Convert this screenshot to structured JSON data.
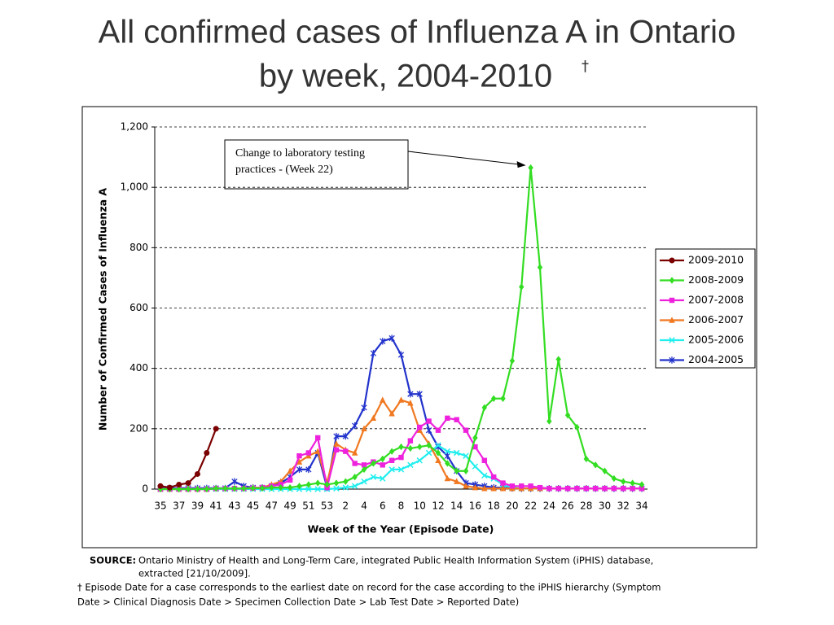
{
  "title_lines": [
    "All confirmed cases of Influenza A in Ontario",
    "by week, 2004-2010"
  ],
  "title_mark": "†",
  "chart_data": {
    "type": "line",
    "ylabel": "Number of Confirmed Cases of Influenza A",
    "xlabel": "Week of the Year (Episode Date)",
    "annotation": {
      "lines": [
        "Change to laboratory testing",
        "practices - (Week 22)"
      ],
      "target": "chart_data.series.1.values.40"
    },
    "ylim": [
      0,
      1200
    ],
    "yticks": [
      0,
      200,
      400,
      600,
      800,
      {
        "value": 1000,
        "label": "1,000"
      },
      {
        "value": 1200,
        "label": "1,200"
      }
    ],
    "grid": true,
    "legend": "right",
    "categories": [
      35,
      null,
      37,
      null,
      39,
      null,
      41,
      null,
      43,
      null,
      45,
      null,
      47,
      null,
      49,
      null,
      51,
      null,
      53,
      null,
      2,
      null,
      4,
      null,
      6,
      null,
      8,
      null,
      10,
      null,
      12,
      null,
      14,
      null,
      16,
      null,
      18,
      null,
      20,
      null,
      22,
      null,
      24,
      null,
      26,
      null,
      28,
      null,
      30,
      null,
      32,
      null,
      34
    ],
    "series": [
      {
        "name": "2009-2010",
        "color": "#7b0000",
        "marker": "circle",
        "values": [
          10,
          5,
          15,
          20,
          50,
          120,
          200,
          null,
          null,
          null,
          null,
          null,
          null,
          null,
          null,
          null,
          null,
          null,
          null,
          null,
          null,
          null,
          null,
          null,
          null,
          null,
          null,
          null,
          null,
          null,
          null,
          null,
          null,
          null,
          null,
          null,
          null,
          null,
          null,
          null,
          null,
          null,
          null,
          null,
          null,
          null,
          null,
          null,
          null,
          null,
          null,
          null,
          null
        ]
      },
      {
        "name": "2008-2009",
        "color": "#33dd22",
        "marker": "diamond",
        "values": [
          0,
          0,
          0,
          0,
          0,
          0,
          2,
          2,
          2,
          2,
          3,
          3,
          5,
          5,
          5,
          10,
          15,
          20,
          15,
          20,
          25,
          40,
          65,
          85,
          100,
          125,
          140,
          135,
          140,
          145,
          120,
          85,
          60,
          60,
          170,
          270,
          300,
          300,
          425,
          670,
          1065,
          735,
          225,
          430,
          245,
          205,
          100,
          80,
          60,
          35,
          25,
          20,
          15
        ]
      },
      {
        "name": "2007-2008",
        "color": "#ee22dd",
        "marker": "square",
        "values": [
          0,
          0,
          0,
          0,
          0,
          0,
          2,
          2,
          2,
          2,
          3,
          5,
          10,
          15,
          30,
          110,
          120,
          170,
          5,
          130,
          125,
          85,
          80,
          90,
          80,
          95,
          105,
          160,
          205,
          225,
          195,
          235,
          230,
          195,
          140,
          95,
          40,
          20,
          10,
          10,
          10,
          5,
          2,
          2,
          2,
          2,
          2,
          2,
          2,
          2,
          2,
          2,
          2
        ]
      },
      {
        "name": "2006-2007",
        "color": "#f07820",
        "marker": "triangle",
        "values": [
          0,
          0,
          0,
          0,
          0,
          0,
          2,
          2,
          2,
          2,
          5,
          5,
          15,
          25,
          60,
          90,
          110,
          125,
          20,
          150,
          130,
          120,
          200,
          235,
          295,
          250,
          295,
          285,
          195,
          150,
          95,
          35,
          25,
          10,
          5,
          2,
          2,
          2,
          2,
          2,
          2,
          2,
          2,
          2,
          2,
          2,
          2,
          2,
          2,
          2,
          2,
          2,
          2
        ]
      },
      {
        "name": "2005-2006",
        "color": "#22eeee",
        "marker": "cross",
        "values": [
          0,
          0,
          0,
          0,
          0,
          0,
          0,
          0,
          0,
          0,
          0,
          0,
          0,
          0,
          0,
          0,
          0,
          0,
          0,
          2,
          5,
          10,
          25,
          40,
          35,
          65,
          65,
          80,
          95,
          120,
          145,
          125,
          120,
          110,
          75,
          45,
          35,
          15,
          5,
          2,
          2,
          2,
          2,
          2,
          2,
          2,
          2,
          2,
          2,
          2,
          2,
          2,
          2
        ]
      },
      {
        "name": "2004-2005",
        "color": "#2233cc",
        "marker": "star",
        "values": [
          5,
          3,
          3,
          3,
          3,
          3,
          3,
          3,
          25,
          10,
          5,
          5,
          10,
          20,
          40,
          65,
          65,
          120,
          5,
          175,
          175,
          210,
          270,
          450,
          490,
          500,
          445,
          315,
          315,
          195,
          140,
          110,
          60,
          20,
          15,
          10,
          5,
          5,
          3,
          2,
          2,
          2,
          2,
          2,
          2,
          2,
          2,
          2,
          2,
          2,
          2,
          2,
          2
        ]
      }
    ]
  },
  "footnotes": {
    "source_label": "SOURCE:",
    "source_lines": [
      "Ontario Ministry of Health and Long-Term Care, integrated Public Health Information System (iPHIS) database,",
      "extracted [21/10/2009]."
    ],
    "note_lines": [
      "† Episode Date for a case corresponds to the earliest date on record for the case according to the iPHIS hierarchy (Symptom",
      "Date > Clinical Diagnosis Date > Specimen Collection Date > Lab Test Date > Reported Date)"
    ]
  }
}
